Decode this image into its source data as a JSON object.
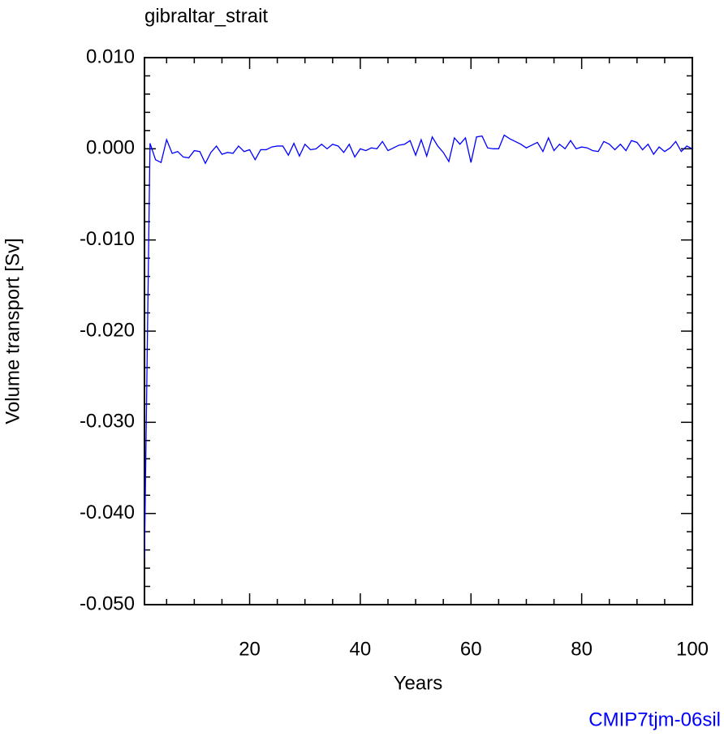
{
  "chart_data": {
    "type": "line",
    "title": "gibraltar_strait",
    "x_label": "Years",
    "y_label": "Volume transport [Sv]",
    "footer": "CMIP7tjm-06sil",
    "x": [
      1,
      2,
      3,
      4,
      5,
      6,
      7,
      8,
      9,
      10,
      11,
      12,
      13,
      14,
      15,
      16,
      17,
      18,
      19,
      20,
      21,
      22,
      23,
      24,
      25,
      26,
      27,
      28,
      29,
      30,
      31,
      32,
      33,
      34,
      35,
      36,
      37,
      38,
      39,
      40,
      41,
      42,
      43,
      44,
      45,
      46,
      47,
      48,
      49,
      50,
      51,
      52,
      53,
      54,
      55,
      56,
      57,
      58,
      59,
      60,
      61,
      62,
      63,
      64,
      65,
      66,
      67,
      68,
      69,
      70,
      71,
      72,
      73,
      74,
      75,
      76,
      77,
      78,
      79,
      80,
      81,
      82,
      83,
      84,
      85,
      86,
      87,
      88,
      89,
      90,
      91,
      92,
      93,
      94,
      95,
      96,
      97,
      98,
      99,
      100
    ],
    "series": [
      {
        "name": "gibraltar_strait",
        "color": "#0000ff",
        "values": [
          -0.045,
          0.0006,
          -0.0012,
          -0.0015,
          0.001,
          -0.0005,
          -0.0003,
          -0.0009,
          -0.001,
          -0.0002,
          -0.0003,
          -0.0016,
          -0.0004,
          0.0003,
          -0.0006,
          -0.0004,
          -0.0005,
          0.0003,
          -0.0003,
          -0.0001,
          -0.0012,
          -0.0001,
          -0.0001,
          0.0002,
          0.0003,
          0.0003,
          -0.0007,
          0.0006,
          -0.0008,
          0.0005,
          -0.0001,
          0.0,
          0.0005,
          0.0,
          0.0005,
          0.0003,
          -0.0004,
          0.0005,
          -0.0009,
          0.0,
          -0.0002,
          0.0001,
          0.0,
          0.0008,
          -0.0002,
          0.0001,
          0.0004,
          0.0005,
          0.0009,
          -0.0007,
          0.001,
          -0.0008,
          0.0013,
          0.0003,
          -0.0004,
          -0.0014,
          0.0012,
          0.0005,
          0.0012,
          -0.0015,
          0.0013,
          0.0014,
          0.0001,
          0.0,
          0.0,
          0.0015,
          0.0011,
          0.0008,
          0.0005,
          0.0001,
          0.0004,
          0.0007,
          -0.0003,
          0.0012,
          -0.0002,
          0.0005,
          0.0,
          0.0009,
          0.0,
          0.0002,
          0.0001,
          -0.0002,
          -0.0003,
          0.0008,
          0.0005,
          -0.0001,
          0.0005,
          -0.0002,
          0.0009,
          0.0007,
          -0.0001,
          0.0005,
          -0.0006,
          0.0002,
          -0.0003,
          0.0001,
          0.0008,
          -0.0003,
          0.0003,
          0.0
        ]
      }
    ],
    "xlim": [
      1,
      100
    ],
    "xticks": [
      20,
      40,
      60,
      80,
      100
    ],
    "ylim": [
      -0.05,
      0.01
    ],
    "yticks": [
      {
        "value": 0.01,
        "label": "0.010"
      },
      {
        "value": 0.0,
        "label": "0.000"
      },
      {
        "value": -0.01,
        "label": "-0.010"
      },
      {
        "value": -0.02,
        "label": "-0.020"
      },
      {
        "value": -0.03,
        "label": "-0.030"
      },
      {
        "value": -0.04,
        "label": "-0.040"
      },
      {
        "value": -0.05,
        "label": "-0.050"
      }
    ]
  }
}
